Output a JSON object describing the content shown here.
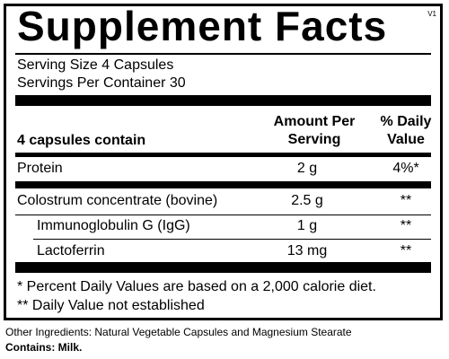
{
  "header": {
    "title": "Supplement Facts",
    "version": "V1"
  },
  "serving": {
    "size": "Serving Size 4 Capsules",
    "per_container": "Servings Per Container  30"
  },
  "columns": {
    "label": "4 capsules contain",
    "amount": [
      "Amount Per",
      "Serving"
    ],
    "daily": [
      "% Daily",
      "Value"
    ]
  },
  "rows": [
    {
      "name": "Protein",
      "amount": "2 g",
      "dv": "4%*"
    },
    {
      "name": "Colostrum concentrate (bovine)",
      "amount": "2.5 g",
      "dv": "**"
    },
    {
      "name": "Immunoglobulin G (IgG)",
      "amount": "1 g",
      "dv": "**"
    },
    {
      "name": "Lactoferrin",
      "amount": "13 mg",
      "dv": "**"
    }
  ],
  "footnotes": [
    "* Percent Daily Values are based on a 2,000 calorie diet.",
    "** Daily Value not established"
  ],
  "other": {
    "ingredients": "Other Ingredients: Natural Vegetable Capsules and Magnesium Stearate",
    "contains": "Contains: Milk."
  }
}
